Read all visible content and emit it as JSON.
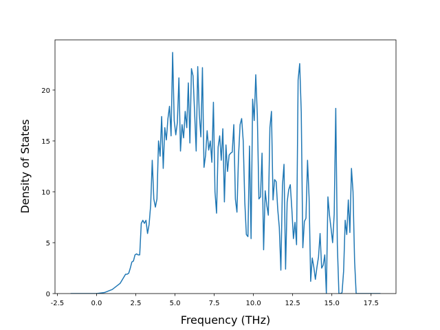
{
  "chart_data": {
    "type": "line",
    "xlabel": "Frequency (THz)",
    "ylabel": "Density of States",
    "series": [
      {
        "color": "#1f77b4",
        "x": [
          -1.66,
          -1.0,
          -0.5,
          0.0,
          0.5,
          1.0,
          1.5,
          1.85,
          1.95,
          2.05,
          2.15,
          2.25,
          2.35,
          2.45,
          2.55,
          2.65,
          2.75,
          2.85,
          2.95,
          3.05,
          3.15,
          3.25,
          3.35,
          3.45,
          3.55,
          3.65,
          3.75,
          3.85,
          3.95,
          4.05,
          4.15,
          4.25,
          4.35,
          4.45,
          4.55,
          4.65,
          4.75,
          4.85,
          4.95,
          5.05,
          5.15,
          5.25,
          5.35,
          5.45,
          5.55,
          5.65,
          5.75,
          5.85,
          5.95,
          6.05,
          6.15,
          6.25,
          6.35,
          6.45,
          6.55,
          6.65,
          6.75,
          6.85,
          6.95,
          7.05,
          7.15,
          7.25,
          7.35,
          7.45,
          7.55,
          7.65,
          7.75,
          7.85,
          7.95,
          8.05,
          8.15,
          8.25,
          8.35,
          8.45,
          8.55,
          8.65,
          8.75,
          8.85,
          8.95,
          9.05,
          9.15,
          9.25,
          9.35,
          9.45,
          9.55,
          9.65,
          9.75,
          9.85,
          9.95,
          10.05,
          10.15,
          10.25,
          10.35,
          10.45,
          10.55,
          10.65,
          10.75,
          10.85,
          10.95,
          11.05,
          11.15,
          11.25,
          11.35,
          11.45,
          11.55,
          11.65,
          11.75,
          11.85,
          11.95,
          12.05,
          12.15,
          12.25,
          12.35,
          12.45,
          12.55,
          12.65,
          12.75,
          12.85,
          12.95,
          13.05,
          13.15,
          13.25,
          13.35,
          13.45,
          13.55,
          13.65,
          13.75,
          13.85,
          13.95,
          14.05,
          14.15,
          14.25,
          14.35,
          14.45,
          14.55,
          14.65,
          14.75,
          14.85,
          14.95,
          15.05,
          15.15,
          15.25,
          15.35,
          15.45,
          15.55,
          15.65,
          15.75,
          15.85,
          15.95,
          16.05,
          16.15,
          16.25,
          16.35,
          16.45,
          16.55,
          16.65,
          18.1
        ],
        "values": [
          0,
          0,
          0,
          0,
          0.1,
          0.4,
          1.0,
          1.9,
          1.9,
          2.0,
          2.5,
          3.1,
          3.2,
          3.8,
          3.9,
          3.8,
          3.8,
          6.9,
          7.2,
          6.9,
          7.2,
          5.9,
          6.8,
          8.7,
          13.1,
          9.3,
          8.5,
          9.3,
          15.0,
          13.5,
          17.4,
          12.3,
          16.3,
          15.1,
          17.2,
          18.4,
          15.5,
          23.7,
          17.0,
          15.6,
          16.8,
          21.2,
          14.0,
          16.6,
          15.3,
          17.9,
          16.3,
          20.7,
          14.8,
          22.1,
          21.4,
          17.8,
          14.0,
          22.3,
          17.6,
          15.4,
          22.2,
          12.4,
          13.6,
          16.0,
          14.1,
          15.0,
          12.9,
          18.8,
          10.0,
          7.9,
          14.4,
          15.5,
          13.1,
          16.2,
          9.0,
          14.6,
          12.0,
          13.6,
          13.8,
          13.9,
          16.6,
          9.3,
          8.0,
          13.5,
          16.6,
          17.2,
          15.0,
          9.0,
          5.8,
          5.6,
          14.5,
          5.4,
          19.1,
          17.0,
          21.5,
          17.5,
          9.3,
          9.5,
          13.8,
          4.3,
          10.1,
          8.7,
          7.7,
          16.3,
          17.9,
          9.2,
          11.2,
          11.0,
          8.3,
          6.5,
          2.3,
          10.6,
          12.7,
          2.4,
          9.0,
          10.2,
          10.7,
          8.3,
          5.4,
          7.0,
          4.8,
          21.0,
          22.6,
          17.8,
          4.5,
          7.1,
          7.4,
          13.1,
          9.4,
          1.2,
          3.5,
          2.6,
          1.4,
          2.6,
          3.6,
          5.9,
          2.5,
          2.8,
          3.8,
          0.0,
          9.5,
          7.7,
          6.4,
          5.0,
          7.8,
          18.2,
          4.8,
          0.0,
          0.0,
          0.1,
          2.2,
          7.2,
          5.8,
          9.2,
          6.0,
          12.3,
          10.0,
          3.2,
          0.0,
          0,
          0
        ]
      }
    ],
    "xlim": [
      -2.65,
      19.09
    ],
    "ylim": [
      0,
      24.93
    ],
    "xticks": [
      -2.5,
      {
        "value": 0,
        "label": "0.0"
      },
      2.5,
      {
        "value": 5,
        "label": "5.0"
      },
      7.5,
      {
        "value": 10,
        "label": "10.0"
      },
      12.5,
      {
        "value": 15,
        "label": "15.0"
      },
      17.5
    ],
    "yticks": [
      0,
      5,
      10,
      15,
      20
    ],
    "grid": false
  }
}
